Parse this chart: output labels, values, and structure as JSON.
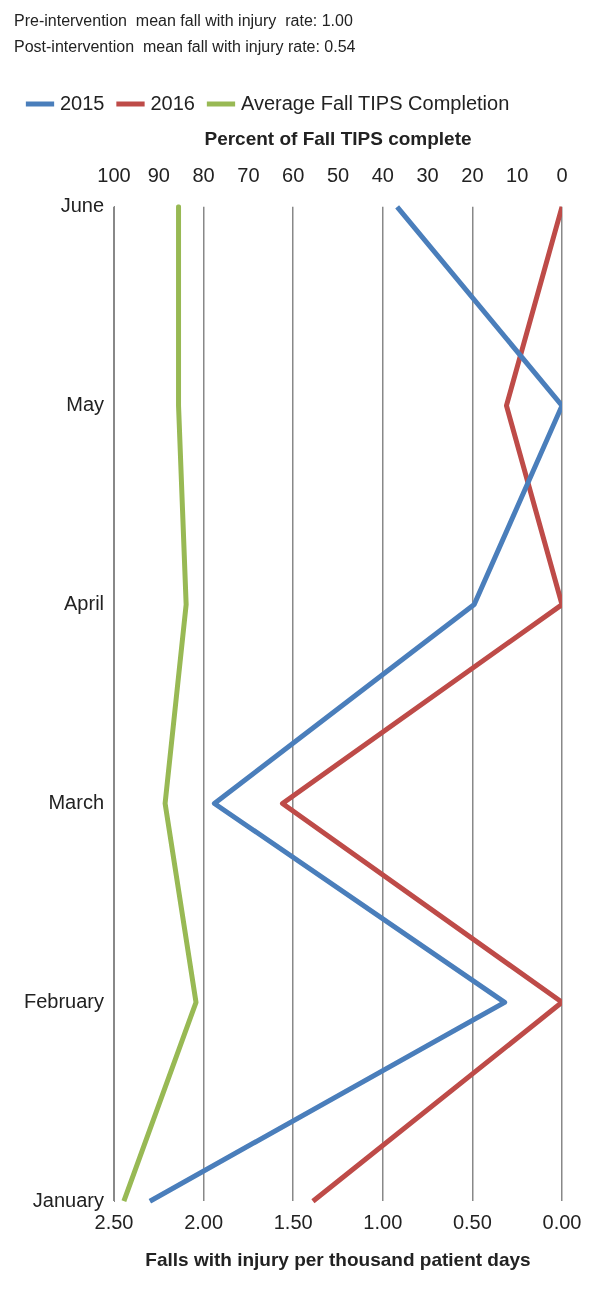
{
  "chart_data": {
    "type": "line",
    "orientation": "horizontal",
    "categories": [
      "June",
      "May",
      "April",
      "March",
      "February",
      "January"
    ],
    "xlabel": "Falls with injury per thousand patient days",
    "x2label": "Percent of Fall TIPS complete",
    "xlim": [
      2.5,
      0
    ],
    "xticks": [
      {
        "value": 2.5,
        "label": "2.50"
      },
      {
        "value": 2,
        "label": "2.00"
      },
      {
        "value": 1.5,
        "label": "1.50"
      },
      {
        "value": 1,
        "label": "1.00"
      },
      {
        "value": 0.5,
        "label": "0.50"
      },
      {
        "value": 0,
        "label": "0.00"
      }
    ],
    "x2lim": [
      100,
      0
    ],
    "x2ticks": [
      100,
      90,
      80,
      70,
      60,
      50,
      40,
      30,
      20,
      10,
      0
    ],
    "series": [
      {
        "name": "2015",
        "color": "#4a7ebb",
        "values": [
          0.92,
          0,
          0.49,
          1.94,
          0.32,
          2.3
        ]
      },
      {
        "name": "2016",
        "color": "#be4b48",
        "values": [
          0,
          0.31,
          0,
          1.56,
          0,
          1.39
        ]
      },
      {
        "name": "Average Fall TIPS Completion",
        "color": "#98b954",
        "axis": "x2",
        "values": [
          85.6,
          85.6,
          83.9,
          88.6,
          81.7,
          97.8
        ]
      }
    ],
    "grid": "x",
    "legend": "top",
    "marker": "none",
    "annotations": [
      "Pre-intervention  mean fall with injury  rate: 1.00",
      "Post-intervention  mean fall with injury rate: 0.54"
    ]
  }
}
